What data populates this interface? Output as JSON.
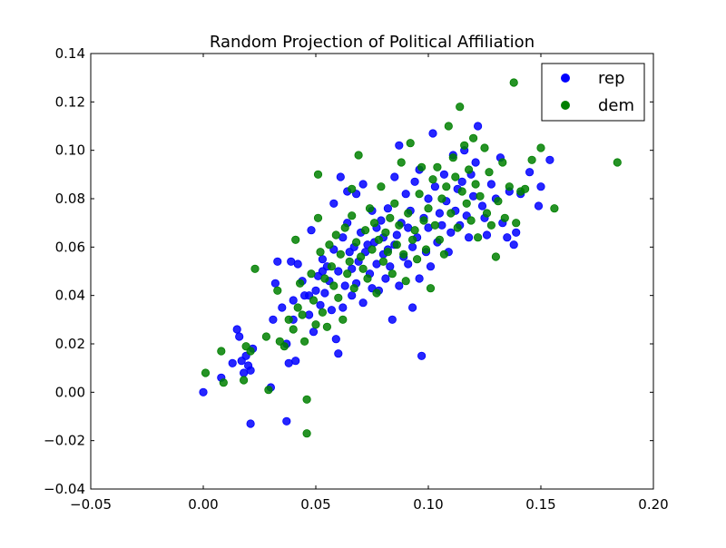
{
  "chart_data": {
    "type": "scatter",
    "title": "Random Projection of Political Affiliation",
    "xlabel": "",
    "ylabel": "",
    "xlim": [
      -0.05,
      0.2
    ],
    "ylim": [
      -0.04,
      0.14
    ],
    "xticks": [
      -0.05,
      0.0,
      0.05,
      0.1,
      0.15,
      0.2
    ],
    "xtick_labels": [
      "−0.05",
      "0.00",
      "0.05",
      "0.10",
      "0.15",
      "0.20"
    ],
    "yticks": [
      -0.04,
      -0.02,
      0.0,
      0.02,
      0.04,
      0.06,
      0.08,
      0.1,
      0.12,
      0.14
    ],
    "ytick_labels": [
      "−0.04",
      "−0.02",
      "0.00",
      "0.02",
      "0.04",
      "0.06",
      "0.08",
      "0.10",
      "0.12",
      "0.14"
    ],
    "grid": false,
    "legend_position": "top-right",
    "series": [
      {
        "name": "rep",
        "color": "#0000ff",
        "points": [
          [
            0.0,
            0.0
          ],
          [
            0.008,
            0.006
          ],
          [
            0.013,
            0.012
          ],
          [
            0.015,
            0.026
          ],
          [
            0.016,
            0.023
          ],
          [
            0.017,
            0.013
          ],
          [
            0.018,
            0.008
          ],
          [
            0.019,
            0.015
          ],
          [
            0.02,
            0.011
          ],
          [
            0.021,
            0.009
          ],
          [
            0.021,
            -0.013
          ],
          [
            0.022,
            0.018
          ],
          [
            0.03,
            0.002
          ],
          [
            0.031,
            0.03
          ],
          [
            0.032,
            0.045
          ],
          [
            0.033,
            0.054
          ],
          [
            0.035,
            0.035
          ],
          [
            0.037,
            0.02
          ],
          [
            0.037,
            -0.012
          ],
          [
            0.038,
            0.012
          ],
          [
            0.039,
            0.054
          ],
          [
            0.04,
            0.038
          ],
          [
            0.04,
            0.03
          ],
          [
            0.041,
            0.013
          ],
          [
            0.042,
            0.053
          ],
          [
            0.044,
            0.046
          ],
          [
            0.045,
            0.04
          ],
          [
            0.047,
            0.04
          ],
          [
            0.047,
            0.032
          ],
          [
            0.048,
            0.067
          ],
          [
            0.049,
            0.025
          ],
          [
            0.05,
            0.042
          ],
          [
            0.051,
            0.048
          ],
          [
            0.052,
            0.036
          ],
          [
            0.053,
            0.055
          ],
          [
            0.053,
            0.05
          ],
          [
            0.054,
            0.041
          ],
          [
            0.055,
            0.052
          ],
          [
            0.056,
            0.046
          ],
          [
            0.057,
            0.034
          ],
          [
            0.058,
            0.078
          ],
          [
            0.058,
            0.059
          ],
          [
            0.059,
            0.022
          ],
          [
            0.06,
            0.016
          ],
          [
            0.06,
            0.05
          ],
          [
            0.061,
            0.089
          ],
          [
            0.062,
            0.064
          ],
          [
            0.062,
            0.035
          ],
          [
            0.063,
            0.044
          ],
          [
            0.064,
            0.07
          ],
          [
            0.064,
            0.083
          ],
          [
            0.065,
            0.058
          ],
          [
            0.066,
            0.051
          ],
          [
            0.066,
            0.04
          ],
          [
            0.067,
            0.06
          ],
          [
            0.068,
            0.082
          ],
          [
            0.068,
            0.045
          ],
          [
            0.069,
            0.054
          ],
          [
            0.07,
            0.066
          ],
          [
            0.071,
            0.086
          ],
          [
            0.071,
            0.037
          ],
          [
            0.072,
            0.058
          ],
          [
            0.073,
            0.061
          ],
          [
            0.074,
            0.049
          ],
          [
            0.075,
            0.075
          ],
          [
            0.075,
            0.043
          ],
          [
            0.076,
            0.062
          ],
          [
            0.077,
            0.068
          ],
          [
            0.077,
            0.053
          ],
          [
            0.078,
            0.042
          ],
          [
            0.079,
            0.071
          ],
          [
            0.08,
            0.057
          ],
          [
            0.08,
            0.064
          ],
          [
            0.081,
            0.047
          ],
          [
            0.082,
            0.059
          ],
          [
            0.082,
            0.076
          ],
          [
            0.083,
            0.052
          ],
          [
            0.084,
            0.03
          ],
          [
            0.085,
            0.089
          ],
          [
            0.085,
            0.061
          ],
          [
            0.086,
            0.065
          ],
          [
            0.087,
            0.102
          ],
          [
            0.087,
            0.044
          ],
          [
            0.088,
            0.07
          ],
          [
            0.089,
            0.056
          ],
          [
            0.09,
            0.082
          ],
          [
            0.091,
            0.068
          ],
          [
            0.091,
            0.053
          ],
          [
            0.092,
            0.075
          ],
          [
            0.093,
            0.06
          ],
          [
            0.093,
            0.035
          ],
          [
            0.094,
            0.087
          ],
          [
            0.095,
            0.064
          ],
          [
            0.096,
            0.092
          ],
          [
            0.096,
            0.047
          ],
          [
            0.097,
            0.015
          ],
          [
            0.098,
            0.072
          ],
          [
            0.099,
            0.058
          ],
          [
            0.1,
            0.08
          ],
          [
            0.1,
            0.068
          ],
          [
            0.101,
            0.052
          ],
          [
            0.102,
            0.107
          ],
          [
            0.103,
            0.085
          ],
          [
            0.104,
            0.062
          ],
          [
            0.105,
            0.074
          ],
          [
            0.106,
            0.069
          ],
          [
            0.107,
            0.09
          ],
          [
            0.108,
            0.079
          ],
          [
            0.109,
            0.058
          ],
          [
            0.11,
            0.066
          ],
          [
            0.111,
            0.098
          ],
          [
            0.112,
            0.075
          ],
          [
            0.113,
            0.084
          ],
          [
            0.114,
            0.069
          ],
          [
            0.115,
            0.087
          ],
          [
            0.116,
            0.1
          ],
          [
            0.117,
            0.073
          ],
          [
            0.118,
            0.064
          ],
          [
            0.119,
            0.09
          ],
          [
            0.12,
            0.081
          ],
          [
            0.121,
            0.095
          ],
          [
            0.122,
            0.11
          ],
          [
            0.124,
            0.077
          ],
          [
            0.125,
            0.072
          ],
          [
            0.126,
            0.065
          ],
          [
            0.128,
            0.086
          ],
          [
            0.13,
            0.08
          ],
          [
            0.132,
            0.097
          ],
          [
            0.133,
            0.07
          ],
          [
            0.135,
            0.064
          ],
          [
            0.136,
            0.083
          ],
          [
            0.138,
            0.061
          ],
          [
            0.139,
            0.066
          ],
          [
            0.141,
            0.082
          ],
          [
            0.145,
            0.091
          ],
          [
            0.149,
            0.077
          ],
          [
            0.15,
            0.085
          ],
          [
            0.154,
            0.096
          ]
        ]
      },
      {
        "name": "dem",
        "color": "#008000",
        "points": [
          [
            0.001,
            0.008
          ],
          [
            0.008,
            0.017
          ],
          [
            0.009,
            0.004
          ],
          [
            0.018,
            0.005
          ],
          [
            0.019,
            0.019
          ],
          [
            0.021,
            0.017
          ],
          [
            0.023,
            0.051
          ],
          [
            0.028,
            0.023
          ],
          [
            0.029,
            0.001
          ],
          [
            0.033,
            0.042
          ],
          [
            0.034,
            0.021
          ],
          [
            0.036,
            0.019
          ],
          [
            0.038,
            0.03
          ],
          [
            0.04,
            0.026
          ],
          [
            0.041,
            0.063
          ],
          [
            0.042,
            0.035
          ],
          [
            0.043,
            0.045
          ],
          [
            0.044,
            0.032
          ],
          [
            0.045,
            0.021
          ],
          [
            0.046,
            -0.003
          ],
          [
            0.046,
            -0.017
          ],
          [
            0.048,
            0.049
          ],
          [
            0.049,
            0.038
          ],
          [
            0.05,
            0.028
          ],
          [
            0.051,
            0.09
          ],
          [
            0.051,
            0.072
          ],
          [
            0.052,
            0.058
          ],
          [
            0.053,
            0.033
          ],
          [
            0.054,
            0.047
          ],
          [
            0.055,
            0.027
          ],
          [
            0.056,
            0.061
          ],
          [
            0.057,
            0.052
          ],
          [
            0.058,
            0.044
          ],
          [
            0.059,
            0.065
          ],
          [
            0.06,
            0.039
          ],
          [
            0.061,
            0.057
          ],
          [
            0.062,
            0.03
          ],
          [
            0.063,
            0.068
          ],
          [
            0.064,
            0.049
          ],
          [
            0.065,
            0.054
          ],
          [
            0.066,
            0.073
          ],
          [
            0.066,
            0.084
          ],
          [
            0.067,
            0.043
          ],
          [
            0.068,
            0.062
          ],
          [
            0.069,
            0.098
          ],
          [
            0.07,
            0.056
          ],
          [
            0.071,
            0.051
          ],
          [
            0.072,
            0.067
          ],
          [
            0.073,
            0.047
          ],
          [
            0.074,
            0.076
          ],
          [
            0.075,
            0.059
          ],
          [
            0.076,
            0.07
          ],
          [
            0.077,
            0.041
          ],
          [
            0.078,
            0.063
          ],
          [
            0.079,
            0.085
          ],
          [
            0.08,
            0.054
          ],
          [
            0.081,
            0.066
          ],
          [
            0.082,
            0.058
          ],
          [
            0.083,
            0.072
          ],
          [
            0.084,
            0.049
          ],
          [
            0.085,
            0.078
          ],
          [
            0.086,
            0.061
          ],
          [
            0.087,
            0.069
          ],
          [
            0.088,
            0.095
          ],
          [
            0.089,
            0.057
          ],
          [
            0.09,
            0.046
          ],
          [
            0.091,
            0.074
          ],
          [
            0.092,
            0.103
          ],
          [
            0.093,
            0.063
          ],
          [
            0.094,
            0.067
          ],
          [
            0.095,
            0.055
          ],
          [
            0.096,
            0.082
          ],
          [
            0.097,
            0.093
          ],
          [
            0.098,
            0.071
          ],
          [
            0.099,
            0.059
          ],
          [
            0.1,
            0.076
          ],
          [
            0.101,
            0.043
          ],
          [
            0.102,
            0.088
          ],
          [
            0.103,
            0.069
          ],
          [
            0.104,
            0.093
          ],
          [
            0.105,
            0.063
          ],
          [
            0.106,
            0.08
          ],
          [
            0.107,
            0.057
          ],
          [
            0.108,
            0.085
          ],
          [
            0.109,
            0.11
          ],
          [
            0.11,
            0.074
          ],
          [
            0.111,
            0.097
          ],
          [
            0.112,
            0.089
          ],
          [
            0.113,
            0.068
          ],
          [
            0.114,
            0.118
          ],
          [
            0.115,
            0.083
          ],
          [
            0.116,
            0.102
          ],
          [
            0.117,
            0.078
          ],
          [
            0.118,
            0.092
          ],
          [
            0.119,
            0.071
          ],
          [
            0.12,
            0.105
          ],
          [
            0.121,
            0.086
          ],
          [
            0.122,
            0.064
          ],
          [
            0.123,
            0.081
          ],
          [
            0.125,
            0.101
          ],
          [
            0.126,
            0.074
          ],
          [
            0.127,
            0.091
          ],
          [
            0.128,
            0.069
          ],
          [
            0.13,
            0.056
          ],
          [
            0.131,
            0.079
          ],
          [
            0.133,
            0.095
          ],
          [
            0.134,
            0.072
          ],
          [
            0.136,
            0.085
          ],
          [
            0.138,
            0.128
          ],
          [
            0.139,
            0.07
          ],
          [
            0.141,
            0.083
          ],
          [
            0.143,
            0.084
          ],
          [
            0.146,
            0.096
          ],
          [
            0.15,
            0.101
          ],
          [
            0.156,
            0.076
          ],
          [
            0.184,
            0.095
          ]
        ]
      }
    ]
  }
}
